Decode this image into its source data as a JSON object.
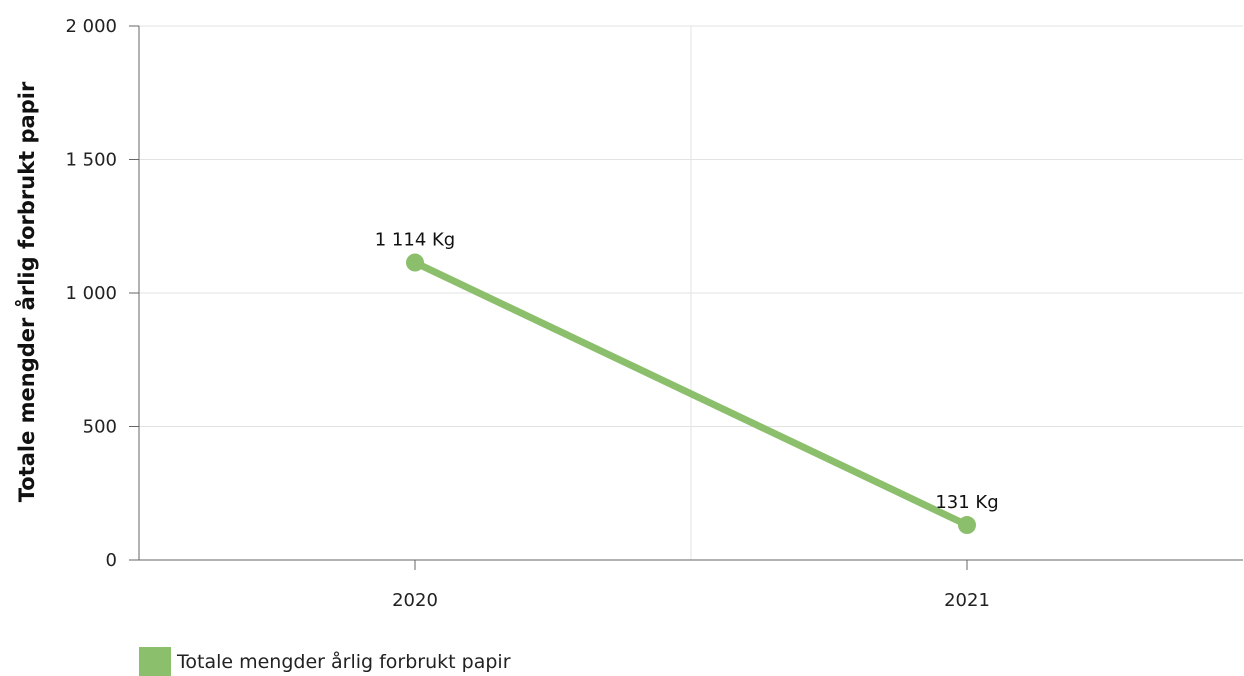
{
  "chart_data": {
    "type": "line",
    "ylabel": "Totale mengder årlig forbrukt papir",
    "xlabel": "",
    "categories": [
      "2020",
      "2021"
    ],
    "series": [
      {
        "name": "Totale mengder årlig forbrukt papir",
        "values": [
          1114,
          131
        ],
        "data_labels": [
          "1 114 Kg",
          "131 Kg"
        ],
        "color": "#8bbf6c"
      }
    ],
    "ylim": [
      0,
      2000
    ],
    "yticks": [
      0,
      500,
      1000,
      1500,
      2000
    ],
    "ytick_labels": [
      "0",
      "500",
      "1 000",
      "1 500",
      "2 000"
    ],
    "grid": true,
    "legend": "bottom-left"
  }
}
